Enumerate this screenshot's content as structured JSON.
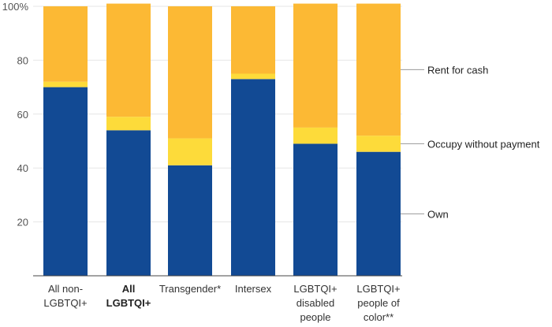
{
  "chart_data": {
    "type": "bar",
    "stacked": true,
    "categories": [
      {
        "lines": [
          "All non-",
          "LGBTQI+"
        ],
        "bold": false
      },
      {
        "lines": [
          "All",
          "LGBTQI+"
        ],
        "bold": true
      },
      {
        "lines": [
          "Transgender*"
        ],
        "bold": false
      },
      {
        "lines": [
          "Intersex"
        ],
        "bold": false
      },
      {
        "lines": [
          "LGBTQI+",
          "disabled",
          "people"
        ],
        "bold": false
      },
      {
        "lines": [
          "LGBTQI+",
          "people of",
          "color**"
        ],
        "bold": false
      }
    ],
    "series": [
      {
        "name": "Own",
        "color": "#124a94",
        "values": [
          70,
          54,
          41,
          73,
          49,
          46
        ]
      },
      {
        "name": "Occupy without payment",
        "color": "#fddb3a",
        "values": [
          2,
          5,
          10,
          2,
          6,
          6
        ]
      },
      {
        "name": "Rent for cash",
        "color": "#fcb934",
        "values": [
          28,
          42,
          49,
          25,
          46,
          49
        ]
      }
    ],
    "ylim": [
      0,
      100
    ],
    "yticks": [
      {
        "value": 100,
        "label": "100%"
      },
      {
        "value": 80,
        "label": "80"
      },
      {
        "value": 60,
        "label": "60"
      },
      {
        "value": 40,
        "label": "40"
      },
      {
        "value": 20,
        "label": "20"
      }
    ],
    "legend_placement": "right, labels aligned to last bar segments",
    "grid": true
  }
}
